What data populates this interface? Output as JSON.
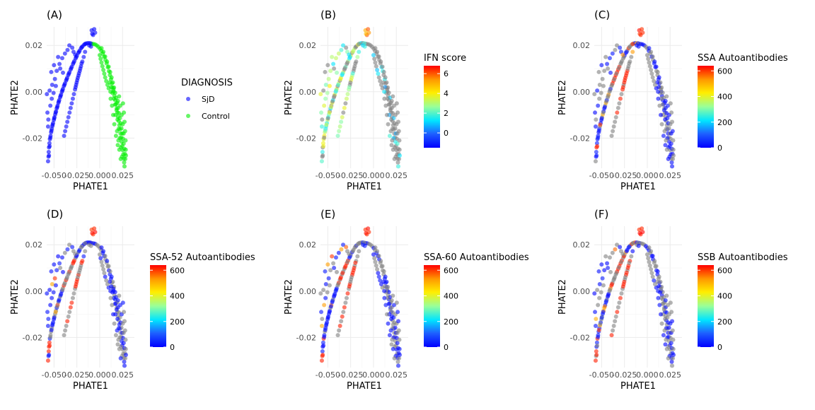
{
  "chart_data": [
    {
      "type": "scatter",
      "panel_label": "(A)",
      "xlabel": "PHATE1",
      "ylabel": "PHATE2",
      "xticks": [
        "-0.050",
        "-0.025",
        "0.000",
        "0.025"
      ],
      "yticks": [
        "0.02",
        "0.00",
        "-0.02"
      ],
      "xlim": [
        -0.058,
        0.038
      ],
      "ylim": [
        -0.033,
        0.028
      ],
      "grid": true,
      "color_mode": "categorical",
      "legend_title": "DIAGNOSIS",
      "legend_position": "right",
      "series": [
        {
          "name": "SjD",
          "color": "#0000FF"
        },
        {
          "name": "Control",
          "color": "#00EE00"
        }
      ]
    },
    {
      "type": "scatter",
      "panel_label": "(B)",
      "xlabel": "PHATE1",
      "ylabel": "PHATE2",
      "xticks": [
        "-0.050",
        "-0.025",
        "0.000",
        "0.025"
      ],
      "yticks": [
        "0.02",
        "0.00",
        "-0.02"
      ],
      "xlim": [
        -0.058,
        0.038
      ],
      "ylim": [
        -0.033,
        0.028
      ],
      "grid": true,
      "color_mode": "continuous",
      "missing_color": "#808080",
      "legend_title": "IFN score",
      "legend_position": "right",
      "colorbar": {
        "min": -1.5,
        "max": 6.8,
        "ticks": [
          0,
          2,
          4,
          6
        ]
      }
    },
    {
      "type": "scatter",
      "panel_label": "(C)",
      "xlabel": "PHATE1",
      "ylabel": "PHATE2",
      "xticks": [
        "-0.050",
        "-0.025",
        "0.000",
        "0.025"
      ],
      "yticks": [
        "0.02",
        "0.00",
        "-0.02"
      ],
      "xlim": [
        -0.058,
        0.038
      ],
      "ylim": [
        -0.033,
        0.028
      ],
      "grid": true,
      "color_mode": "continuous",
      "missing_color": "#808080",
      "legend_title": "SSA Autoantibodies",
      "legend_position": "right",
      "colorbar": {
        "min": 0,
        "max": 640,
        "ticks": [
          0,
          200,
          400,
          600
        ]
      }
    },
    {
      "type": "scatter",
      "panel_label": "(D)",
      "xlabel": "PHATE1",
      "ylabel": "PHATE2",
      "xticks": [
        "-0.050",
        "-0.025",
        "0.000",
        "0.025"
      ],
      "yticks": [
        "0.02",
        "0.00",
        "-0.02"
      ],
      "xlim": [
        -0.058,
        0.038
      ],
      "ylim": [
        -0.033,
        0.028
      ],
      "grid": true,
      "color_mode": "continuous",
      "missing_color": "#808080",
      "legend_title": "SSA-52 Autoantibodies",
      "legend_position": "right",
      "colorbar": {
        "min": 0,
        "max": 640,
        "ticks": [
          0,
          200,
          400,
          600
        ]
      }
    },
    {
      "type": "scatter",
      "panel_label": "(E)",
      "xlabel": "PHATE1",
      "ylabel": "PHATE2",
      "xticks": [
        "-0.050",
        "-0.025",
        "0.000",
        "0.025"
      ],
      "yticks": [
        "0.02",
        "0.00",
        "-0.02"
      ],
      "xlim": [
        -0.058,
        0.038
      ],
      "ylim": [
        -0.033,
        0.028
      ],
      "grid": true,
      "color_mode": "continuous",
      "missing_color": "#808080",
      "legend_title": "SSA-60 Autoantibodies",
      "legend_position": "right",
      "colorbar": {
        "min": 0,
        "max": 640,
        "ticks": [
          0,
          200,
          400,
          600
        ]
      }
    },
    {
      "type": "scatter",
      "panel_label": "(F)",
      "xlabel": "PHATE1",
      "ylabel": "PHATE2",
      "xticks": [
        "-0.050",
        "-0.025",
        "0.000",
        "0.025"
      ],
      "yticks": [
        "0.02",
        "0.00",
        "-0.02"
      ],
      "xlim": [
        -0.058,
        0.038
      ],
      "ylim": [
        -0.033,
        0.028
      ],
      "grid": true,
      "color_mode": "continuous",
      "missing_color": "#808080",
      "legend_title": "SSB Autoantibodies",
      "legend_position": "right",
      "colorbar": {
        "min": 0,
        "max": 640,
        "ticks": [
          0,
          200,
          400,
          600
        ]
      }
    }
  ],
  "points": {
    "sjd_left_arm": [
      [
        -0.0565,
        -0.03
      ],
      [
        -0.056,
        -0.028
      ],
      [
        -0.0558,
        -0.026
      ],
      [
        -0.0555,
        -0.024
      ],
      [
        -0.055,
        -0.0222
      ],
      [
        -0.0545,
        -0.0205
      ],
      [
        -0.0538,
        -0.019
      ],
      [
        -0.0532,
        -0.0175
      ],
      [
        -0.0525,
        -0.016
      ],
      [
        -0.0518,
        -0.0148
      ],
      [
        -0.051,
        -0.0135
      ],
      [
        -0.0502,
        -0.0122
      ],
      [
        -0.0495,
        -0.011
      ],
      [
        -0.0487,
        -0.0098
      ],
      [
        -0.0478,
        -0.0085
      ],
      [
        -0.047,
        -0.0072
      ],
      [
        -0.0461,
        -0.006
      ],
      [
        -0.0452,
        -0.0048
      ],
      [
        -0.0443,
        -0.0036
      ],
      [
        -0.0433,
        -0.0024
      ],
      [
        -0.0423,
        -0.0012
      ],
      [
        -0.0413,
        0.0
      ],
      [
        -0.0403,
        0.0012
      ],
      [
        -0.0392,
        0.0024
      ],
      [
        -0.038,
        0.0036
      ],
      [
        -0.0368,
        0.0048
      ],
      [
        -0.0356,
        0.006
      ],
      [
        -0.0344,
        0.0072
      ],
      [
        -0.0331,
        0.0084
      ],
      [
        -0.0318,
        0.0096
      ],
      [
        -0.0305,
        0.0108
      ],
      [
        -0.0292,
        0.012
      ],
      [
        -0.0278,
        0.0132
      ],
      [
        -0.0264,
        0.0144
      ],
      [
        -0.0249,
        0.0156
      ],
      [
        -0.0234,
        0.0168
      ],
      [
        -0.0219,
        0.0178
      ],
      [
        -0.0204,
        0.0188
      ],
      [
        -0.0188,
        0.0196
      ],
      [
        -0.017,
        0.0203
      ],
      [
        -0.0152,
        0.0208
      ],
      [
        -0.0134,
        0.021
      ],
      [
        -0.0116,
        0.021
      ],
      [
        -0.01,
        0.0209
      ],
      [
        -0.0555,
        -0.0275
      ],
      [
        -0.0548,
        -0.0235
      ],
      [
        -0.054,
        -0.0198
      ],
      [
        -0.0528,
        -0.0168
      ],
      [
        -0.0515,
        -0.0142
      ],
      [
        -0.0498,
        -0.0115
      ],
      [
        -0.0482,
        -0.009
      ],
      [
        -0.0465,
        -0.0066
      ],
      [
        -0.0448,
        -0.0042
      ],
      [
        -0.0428,
        -0.0018
      ],
      [
        -0.0408,
        0.0006
      ],
      [
        -0.0386,
        0.003
      ],
      [
        -0.0362,
        0.0054
      ],
      [
        -0.0338,
        0.0078
      ],
      [
        -0.0312,
        0.0102
      ],
      [
        -0.0285,
        0.0126
      ],
      [
        -0.0256,
        0.015
      ],
      [
        -0.0226,
        0.0172
      ],
      [
        -0.0196,
        0.0192
      ],
      [
        -0.016,
        0.0206
      ],
      [
        -0.0578,
        -0.001
      ],
      [
        -0.0572,
        -0.009
      ],
      [
        -0.0565,
        -0.015
      ],
      [
        -0.0548,
        0.0005
      ],
      [
        -0.052,
        0.003
      ],
      [
        -0.049,
        0.0055
      ],
      [
        -0.047,
        0.009
      ],
      [
        -0.044,
        0.012
      ],
      [
        -0.041,
        0.0145
      ],
      [
        -0.038,
        0.0165
      ],
      [
        -0.0352,
        0.018
      ],
      [
        -0.0332,
        0.02
      ],
      [
        -0.03,
        0.019
      ],
      [
        -0.0286,
        0.0172
      ],
      [
        -0.0268,
        0.016
      ],
      [
        -0.0432,
        0.01
      ],
      [
        -0.0402,
        0.0082
      ],
      [
        -0.0455,
        0.015
      ],
      [
        -0.05,
        0.0115
      ],
      [
        -0.053,
        0.0085
      ],
      [
        -0.054,
        -0.006
      ],
      [
        -0.0525,
        -0.003
      ],
      [
        -0.0505,
        -0.0005
      ],
      [
        -0.048,
        0.0025
      ],
      [
        -0.0562,
        -0.012
      ],
      [
        -0.019,
        0.013
      ],
      [
        -0.0175,
        0.015
      ],
      [
        -0.016,
        0.0172
      ],
      [
        -0.0205,
        0.011
      ],
      [
        -0.0218,
        0.009
      ],
      [
        -0.0232,
        0.007
      ],
      [
        -0.0246,
        0.005
      ],
      [
        -0.0258,
        0.003
      ],
      [
        -0.027,
        0.001
      ],
      [
        -0.0282,
        -0.001
      ],
      [
        -0.0294,
        -0.003
      ],
      [
        -0.0306,
        -0.005
      ],
      [
        -0.0318,
        -0.007
      ],
      [
        -0.033,
        -0.009
      ],
      [
        -0.0342,
        -0.011
      ],
      [
        -0.0354,
        -0.013
      ],
      [
        -0.0366,
        -0.015
      ],
      [
        -0.0378,
        -0.017
      ],
      [
        -0.039,
        -0.019
      ],
      [
        -0.0198,
        0.0122
      ],
      [
        -0.0212,
        0.01
      ],
      [
        -0.0226,
        0.008
      ],
      [
        -0.024,
        0.006
      ],
      [
        -0.0252,
        0.004
      ],
      [
        -0.0264,
        0.002
      ],
      [
        -0.0088,
        0.0265
      ],
      [
        -0.006,
        0.027
      ],
      [
        -0.0072,
        0.0245
      ],
      [
        -0.0082,
        0.025
      ],
      [
        -0.005,
        0.0255
      ],
      [
        -0.0115,
        0.02
      ],
      [
        -0.0095,
        0.0195
      ]
    ],
    "control_arm": [
      [
        -0.0085,
        0.0207
      ],
      [
        -0.0068,
        0.0206
      ],
      [
        -0.005,
        0.0204
      ],
      [
        -0.0032,
        0.02
      ],
      [
        -0.0015,
        0.0194
      ],
      [
        0.0002,
        0.0186
      ],
      [
        0.0018,
        0.0176
      ],
      [
        0.0034,
        0.0164
      ],
      [
        0.0049,
        0.0151
      ],
      [
        0.0063,
        0.0137
      ],
      [
        0.0076,
        0.0122
      ],
      [
        0.0089,
        0.0106
      ],
      [
        0.0101,
        0.0089
      ],
      [
        0.0112,
        0.0072
      ],
      [
        0.0123,
        0.0054
      ],
      [
        0.0133,
        0.0036
      ],
      [
        0.0143,
        0.0018
      ],
      [
        0.0152,
        0.0
      ],
      [
        0.0161,
        -0.0018
      ],
      [
        0.017,
        -0.0036
      ],
      [
        0.0178,
        -0.0054
      ],
      [
        0.0186,
        -0.0072
      ],
      [
        0.0194,
        -0.009
      ],
      [
        0.0201,
        -0.0108
      ],
      [
        0.0208,
        -0.0126
      ],
      [
        0.0215,
        -0.0144
      ],
      [
        0.0222,
        -0.0162
      ],
      [
        0.0228,
        -0.018
      ],
      [
        0.0234,
        -0.0198
      ],
      [
        0.024,
        -0.0216
      ],
      [
        0.0246,
        -0.0234
      ],
      [
        0.0252,
        -0.0252
      ],
      [
        0.0258,
        -0.027
      ],
      [
        0.0264,
        -0.0288
      ],
      [
        0.0268,
        -0.0305
      ],
      [
        0.0272,
        -0.0322
      ],
      [
        0.002,
        0.0188
      ],
      [
        0.004,
        0.0172
      ],
      [
        0.006,
        0.0152
      ],
      [
        0.008,
        0.013
      ],
      [
        0.0098,
        0.0108
      ],
      [
        0.0115,
        0.0085
      ],
      [
        0.013,
        0.0062
      ],
      [
        0.0144,
        0.004
      ],
      [
        0.0157,
        0.0018
      ],
      [
        0.0169,
        -0.0004
      ],
      [
        0.018,
        -0.0026
      ],
      [
        0.0191,
        -0.0048
      ],
      [
        0.0201,
        -0.007
      ],
      [
        0.0211,
        -0.0092
      ],
      [
        0.022,
        -0.0114
      ],
      [
        0.0229,
        -0.0136
      ],
      [
        0.0238,
        -0.0158
      ],
      [
        0.0246,
        -0.018
      ],
      [
        0.0254,
        -0.0202
      ],
      [
        0.0262,
        -0.0224
      ],
      [
        0.027,
        -0.0246
      ],
      [
        0.0276,
        -0.0268
      ],
      [
        0.028,
        -0.029
      ],
      [
        0.011,
        0.004
      ],
      [
        0.0125,
        0.002
      ],
      [
        0.014,
        -0.0005
      ],
      [
        0.0155,
        -0.003
      ],
      [
        0.0168,
        -0.0055
      ],
      [
        0.0185,
        -0.008
      ],
      [
        0.02,
        -0.004
      ],
      [
        0.0212,
        -0.002
      ],
      [
        0.0225,
        -0.006
      ],
      [
        0.024,
        -0.01
      ],
      [
        0.0252,
        -0.014
      ],
      [
        0.0262,
        -0.018
      ],
      [
        0.0195,
        -0.012
      ],
      [
        0.0208,
        -0.016
      ],
      [
        0.022,
        -0.02
      ],
      [
        0.0232,
        -0.024
      ],
      [
        0.0244,
        -0.028
      ],
      [
        0.0118,
        0.0
      ],
      [
        0.0098,
        0.0015
      ],
      [
        0.0085,
        0.003
      ],
      [
        0.0072,
        0.0046
      ],
      [
        0.006,
        0.0062
      ],
      [
        0.005,
        0.0078
      ],
      [
        0.004,
        0.0094
      ],
      [
        0.003,
        0.011
      ],
      [
        0.002,
        0.0126
      ],
      [
        0.001,
        0.0142
      ],
      [
        0.0,
        0.0158
      ],
      [
        0.015,
        0.001
      ],
      [
        0.0172,
        -0.01
      ],
      [
        0.019,
        -0.017
      ],
      [
        0.0205,
        -0.021
      ],
      [
        0.0215,
        -0.025
      ],
      [
        0.023,
        -0.029
      ],
      [
        0.0255,
        -0.005
      ],
      [
        0.0265,
        -0.009
      ],
      [
        0.0272,
        -0.013
      ],
      [
        0.0278,
        -0.017
      ],
      [
        0.0283,
        -0.021
      ],
      [
        0.016,
        -0.014
      ],
      [
        0.0178,
        -0.019
      ],
      [
        0.0198,
        -0.023
      ],
      [
        0.0135,
        -0.006
      ],
      [
        0.0148,
        -0.01
      ],
      [
        0.012,
        -0.003
      ],
      [
        0.0285,
        -0.025
      ],
      [
        0.0287,
        -0.0275
      ]
    ]
  }
}
